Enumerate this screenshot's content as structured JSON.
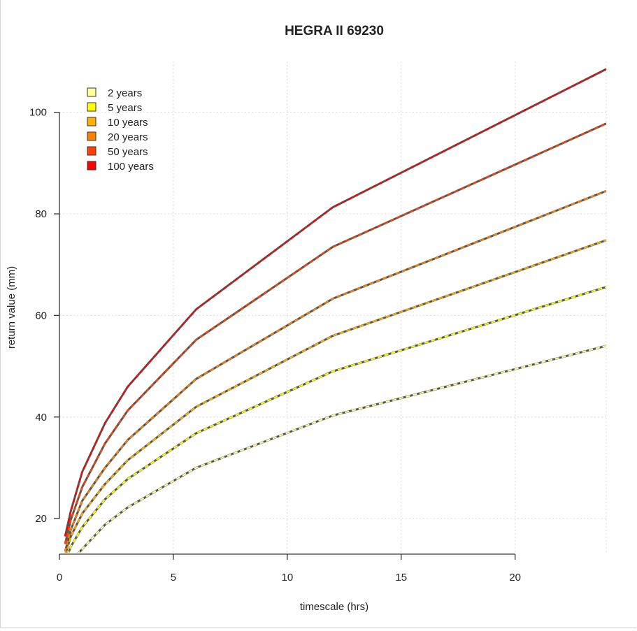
{
  "chart_data": {
    "type": "line",
    "title": "HEGRA II 69230",
    "xlabel": "timescale (hrs)",
    "ylabel": "return value (mm)",
    "xlim": [
      0,
      24
    ],
    "ylim": [
      13,
      110
    ],
    "x_ticks": [
      0,
      5,
      10,
      15,
      20
    ],
    "y_ticks": [
      20,
      40,
      60,
      80,
      100
    ],
    "grid": true,
    "legend_position": "top-left",
    "line_style": "dashed colored line over dark grey line",
    "x": [
      0.25,
      0.5,
      1,
      2,
      3,
      6,
      12,
      24
    ],
    "series": [
      {
        "name": "2 years",
        "color": "#FFFF99",
        "values": [
          9.5,
          11.5,
          14.0,
          18.8,
          22.2,
          30.0,
          40.3,
          54.0
        ]
      },
      {
        "name": "5 years",
        "color": "#FFFF00",
        "values": [
          11.5,
          14.5,
          18.3,
          23.8,
          27.8,
          36.8,
          49.0,
          65.6
        ]
      },
      {
        "name": "10 years",
        "color": "#FFB000",
        "values": [
          12.8,
          16.5,
          21.0,
          26.8,
          31.5,
          42.0,
          56.0,
          74.8
        ]
      },
      {
        "name": "20 years",
        "color": "#FF8000",
        "values": [
          13.5,
          17.8,
          23.5,
          30.0,
          35.5,
          47.5,
          63.3,
          84.5
        ]
      },
      {
        "name": "50 years",
        "color": "#FF4000",
        "values": [
          15.0,
          19.8,
          26.2,
          34.8,
          41.3,
          55.2,
          73.5,
          97.8
        ]
      },
      {
        "name": "100 years",
        "color": "#FF0000",
        "values": [
          16.5,
          21.5,
          29.2,
          38.8,
          46.0,
          61.2,
          81.3,
          108.5
        ]
      }
    ]
  }
}
